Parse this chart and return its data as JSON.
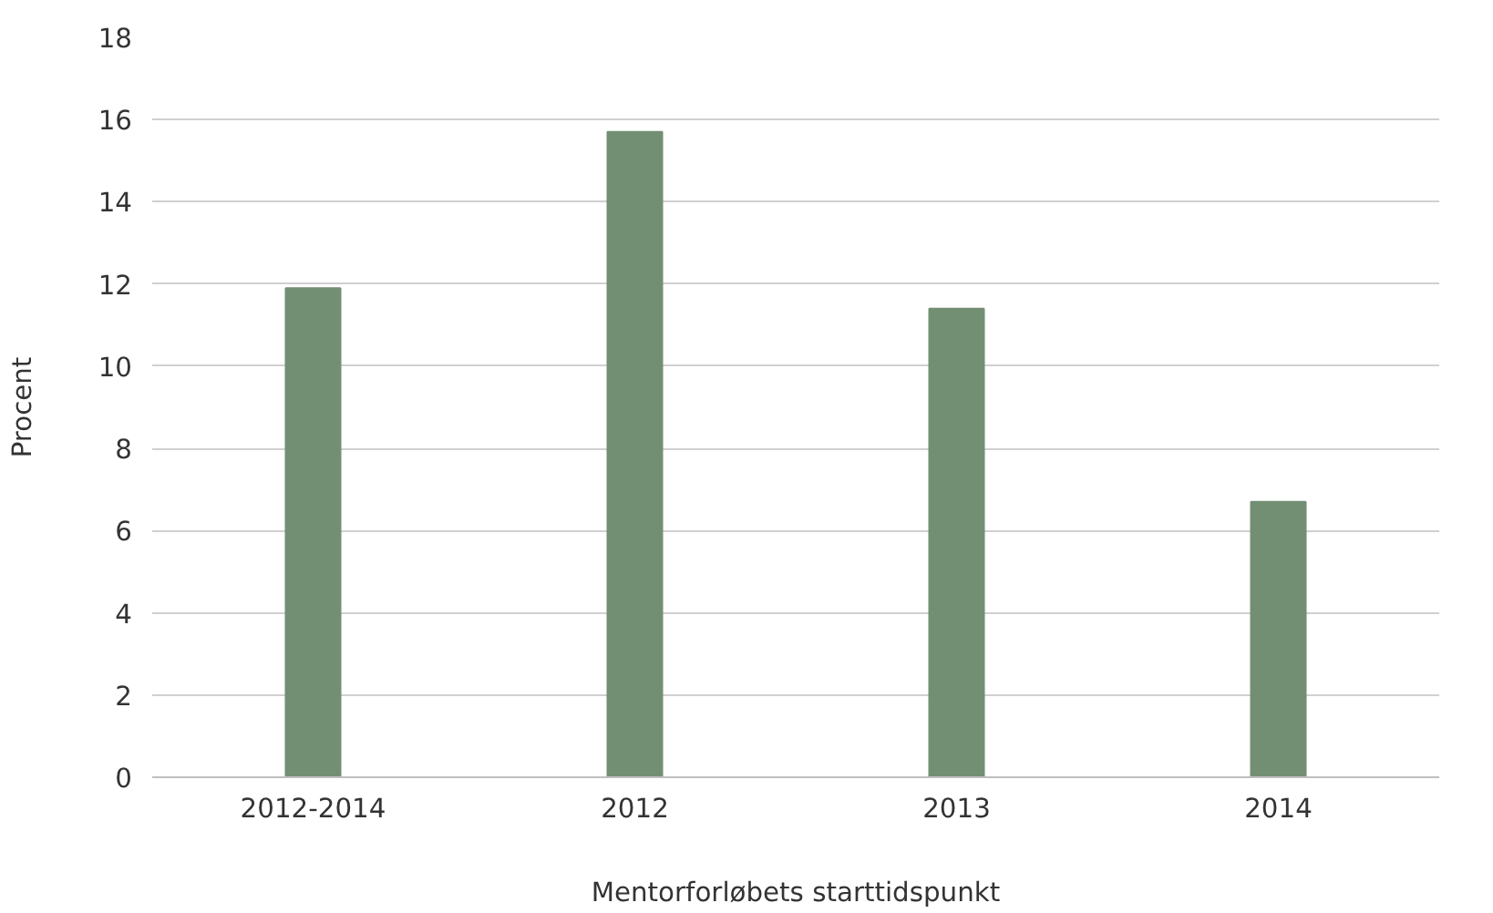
{
  "chart_data": {
    "type": "bar",
    "xlabel": "Mentorforløbets starttidspunkt",
    "ylabel": "Procent",
    "categories": [
      "2012-2014",
      "2012",
      "2013",
      "2014"
    ],
    "values": [
      11.9,
      15.7,
      11.4,
      6.7
    ],
    "color": "#738f73",
    "ylim": [
      0,
      18
    ],
    "yticks": [
      0,
      2,
      4,
      6,
      8,
      10,
      12,
      14,
      16,
      18
    ],
    "grid": "y"
  }
}
